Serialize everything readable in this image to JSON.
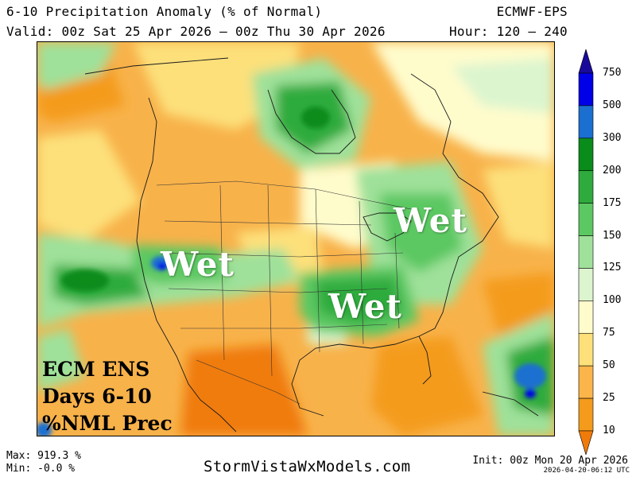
{
  "header": {
    "title": "6-10 Precipitation Anomaly (% of Normal)",
    "valid": "Valid: 00z Sat 25 Apr 2026 — 00z Thu 30 Apr 2026",
    "model": "ECMWF-EPS",
    "hour": "Hour: 120 — 240"
  },
  "map": {
    "wet_labels": [
      "Wet",
      "Wet",
      "Wet"
    ],
    "legend_lines": [
      "ECM ENS",
      "Days 6-10",
      "%NML Prec"
    ]
  },
  "colorbar": {
    "levels": [
      "750",
      "500",
      "300",
      "200",
      "175",
      "150",
      "125",
      "100",
      "75",
      "50",
      "25",
      "10"
    ],
    "colors": [
      "#1a0a9c",
      "#0000e8",
      "#1a6fd0",
      "#098c1a",
      "#2eab3c",
      "#5cc862",
      "#9fe19a",
      "#dcf5cf",
      "#fffccc",
      "#fde07a",
      "#fbb54a",
      "#f49b1c",
      "#f07b0a"
    ]
  },
  "footer": {
    "max": "Max: 919.3 %",
    "min": "Min: -0.0 %",
    "site": "StormVistaWxModels.com",
    "init": "Init: 00z Mon 20 Apr 2026",
    "stamp": "2026-04-20-06:12 UTC"
  }
}
